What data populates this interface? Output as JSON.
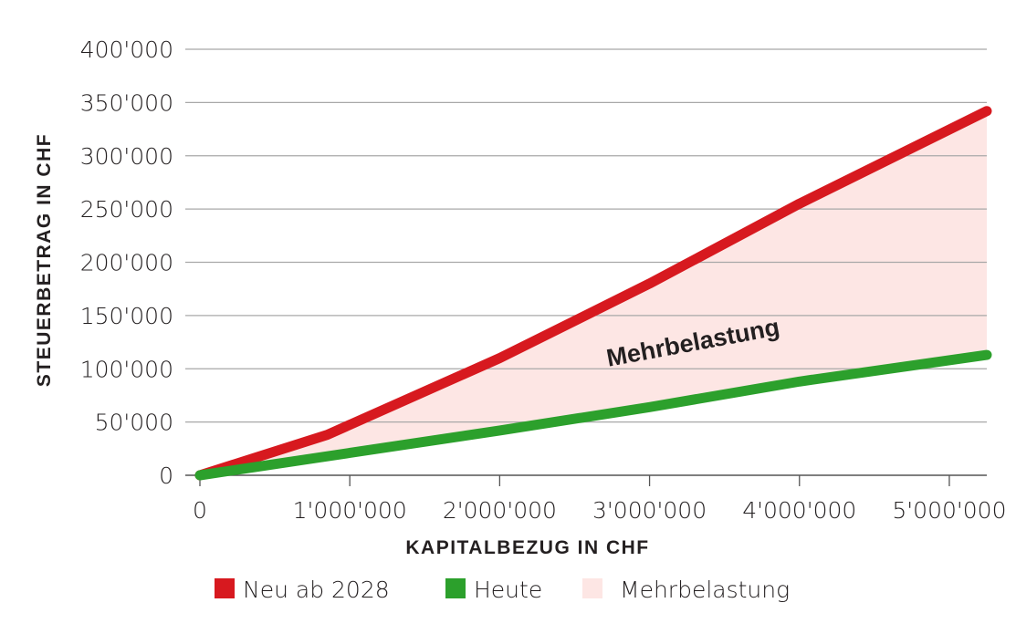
{
  "chart_data": {
    "type": "line",
    "xlabel": "KAPITALBEZUG IN CHF",
    "ylabel": "STEUERBETRAG IN CHF",
    "xlim": [
      0,
      5250000
    ],
    "ylim": [
      0,
      400000
    ],
    "x_ticks": [
      0,
      1000000,
      2000000,
      3000000,
      4000000,
      5000000
    ],
    "x_tick_labels": [
      "0",
      "1'000'000",
      "2'000'000",
      "3'000'000",
      "4'000'000",
      "5'000'000"
    ],
    "y_ticks": [
      0,
      50000,
      100000,
      150000,
      200000,
      250000,
      300000,
      350000,
      400000
    ],
    "y_tick_labels": [
      "0",
      "50'000",
      "100'000",
      "150'000",
      "200'000",
      "250'000",
      "300'000",
      "350'000",
      "400'000"
    ],
    "grid": "horizontal",
    "series": [
      {
        "name": "Neu ab 2028",
        "color": "#d7191f",
        "points": [
          [
            0,
            0
          ],
          [
            850000,
            38000
          ],
          [
            2000000,
            110000
          ],
          [
            3000000,
            180000
          ],
          [
            4000000,
            255000
          ],
          [
            5250000,
            342000
          ]
        ]
      },
      {
        "name": "Heute",
        "color": "#2ca02c",
        "points": [
          [
            0,
            0
          ],
          [
            1000000,
            21000
          ],
          [
            2000000,
            42000
          ],
          [
            3000000,
            64000
          ],
          [
            4000000,
            88000
          ],
          [
            5250000,
            113000
          ]
        ]
      }
    ],
    "fill_between": {
      "name": "Mehrbelastung",
      "color": "#fde6e4"
    },
    "annotation": {
      "text": "Mehrbelastung",
      "x": 3300000,
      "y": 117000
    },
    "legend": {
      "placement": "bottom"
    }
  }
}
